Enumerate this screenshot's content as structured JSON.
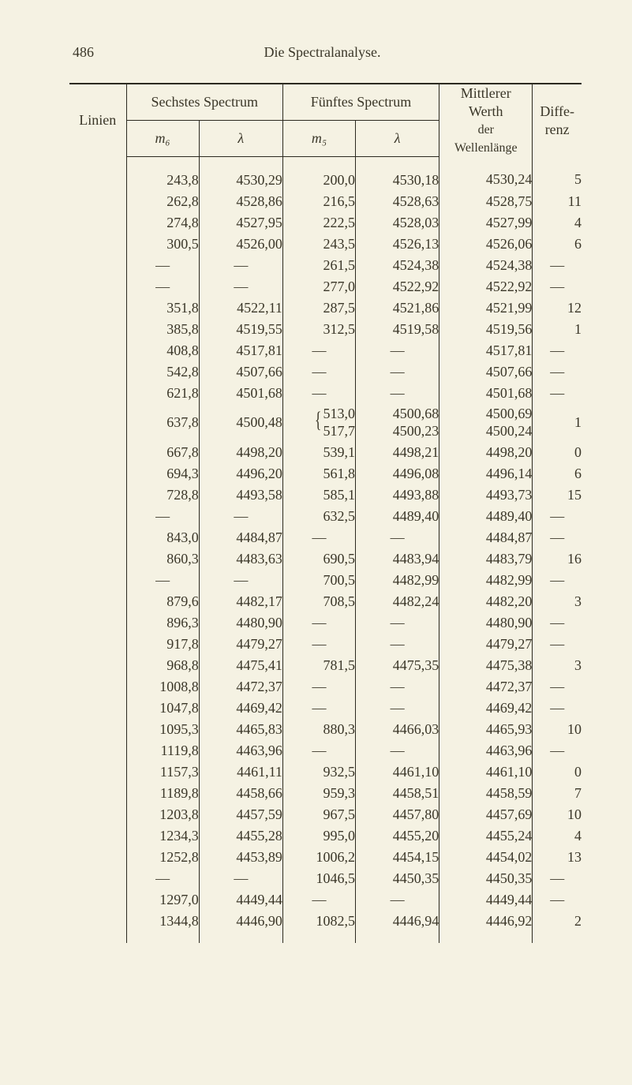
{
  "page_number": "486",
  "page_title": "Die Spectralanalyse.",
  "header": {
    "linien": "Linien",
    "sechstes": "Sechstes Spectrum",
    "fuenftes": "Fünftes Spectrum",
    "mittlerer_l1": "Mittlerer",
    "mittlerer_l2": "Werth",
    "mittlerer_l3": "der",
    "mittlerer_l4": "Wellenlänge",
    "diffe_l1": "Diffe-",
    "diffe_l2": "renz",
    "m6": "m₆",
    "l6": "λ",
    "m5": "m₅",
    "l5": "λ"
  },
  "dash": "—",
  "rows": [
    {
      "m6": "243,8",
      "l6": "4530,29",
      "m5": "200,0",
      "l5": "4530,18",
      "mw": "4530,24",
      "d": "5"
    },
    {
      "m6": "262,8",
      "l6": "4528,86",
      "m5": "216,5",
      "l5": "4528,63",
      "mw": "4528,75",
      "d": "11"
    },
    {
      "m6": "274,8",
      "l6": "4527,95",
      "m5": "222,5",
      "l5": "4528,03",
      "mw": "4527,99",
      "d": "4"
    },
    {
      "m6": "300,5",
      "l6": "4526,00",
      "m5": "243,5",
      "l5": "4526,13",
      "mw": "4526,06",
      "d": "6"
    },
    {
      "m6": "—",
      "l6": "—",
      "m5": "261,5",
      "l5": "4524,38",
      "mw": "4524,38",
      "d": "—"
    },
    {
      "m6": "—",
      "l6": "—",
      "m5": "277,0",
      "l5": "4522,92",
      "mw": "4522,92",
      "d": "—"
    },
    {
      "m6": "351,8",
      "l6": "4522,11",
      "m5": "287,5",
      "l5": "4521,86",
      "mw": "4521,99",
      "d": "12"
    },
    {
      "m6": "385,8",
      "l6": "4519,55",
      "m5": "312,5",
      "l5": "4519,58",
      "mw": "4519,56",
      "d": "1"
    },
    {
      "m6": "408,8",
      "l6": "4517,81",
      "m5": "—",
      "l5": "—",
      "mw": "4517,81",
      "d": "—"
    },
    {
      "m6": "542,8",
      "l6": "4507,66",
      "m5": "—",
      "l5": "—",
      "mw": "4507,66",
      "d": "—"
    },
    {
      "m6": "621,8",
      "l6": "4501,68",
      "m5": "—",
      "l5": "—",
      "mw": "4501,68",
      "d": "—"
    },
    {
      "m6": "637,8",
      "l6": "4500,48",
      "m5_a": "513,0",
      "m5_b": "517,7",
      "l5_a": "4500,68",
      "l5_b": "4500,23",
      "mw_a": "4500,69",
      "mw_b": "4500,24",
      "d": "1",
      "brace": true
    },
    {
      "m6": "667,8",
      "l6": "4498,20",
      "m5": "539,1",
      "l5": "4498,21",
      "mw": "4498,20",
      "d": "0"
    },
    {
      "m6": "694,3",
      "l6": "4496,20",
      "m5": "561,8",
      "l5": "4496,08",
      "mw": "4496,14",
      "d": "6"
    },
    {
      "m6": "728,8",
      "l6": "4493,58",
      "m5": "585,1",
      "l5": "4493,88",
      "mw": "4493,73",
      "d": "15"
    },
    {
      "m6": "—",
      "l6": "—",
      "m5": "632,5",
      "l5": "4489,40",
      "mw": "4489,40",
      "d": "—"
    },
    {
      "m6": "843,0",
      "l6": "4484,87",
      "m5": "—",
      "l5": "—",
      "mw": "4484,87",
      "d": "—"
    },
    {
      "m6": "860,3",
      "l6": "4483,63",
      "m5": "690,5",
      "l5": "4483,94",
      "mw": "4483,79",
      "d": "16"
    },
    {
      "m6": "—",
      "l6": "—",
      "m5": "700,5",
      "l5": "4482,99",
      "mw": "4482,99",
      "d": "—"
    },
    {
      "m6": "879,6",
      "l6": "4482,17",
      "m5": "708,5",
      "l5": "4482,24",
      "mw": "4482,20",
      "d": "3"
    },
    {
      "m6": "896,3",
      "l6": "4480,90",
      "m5": "—",
      "l5": "—",
      "mw": "4480,90",
      "d": "—"
    },
    {
      "m6": "917,8",
      "l6": "4479,27",
      "m5": "—",
      "l5": "—",
      "mw": "4479,27",
      "d": "—"
    },
    {
      "m6": "968,8",
      "l6": "4475,41",
      "m5": "781,5",
      "l5": "4475,35",
      "mw": "4475,38",
      "d": "3"
    },
    {
      "m6": "1008,8",
      "l6": "4472,37",
      "m5": "—",
      "l5": "—",
      "mw": "4472,37",
      "d": "—"
    },
    {
      "m6": "1047,8",
      "l6": "4469,42",
      "m5": "—",
      "l5": "—",
      "mw": "4469,42",
      "d": "—"
    },
    {
      "m6": "1095,3",
      "l6": "4465,83",
      "m5": "880,3",
      "l5": "4466,03",
      "mw": "4465,93",
      "d": "10"
    },
    {
      "m6": "1119,8",
      "l6": "4463,96",
      "m5": "—",
      "l5": "—",
      "mw": "4463,96",
      "d": "—"
    },
    {
      "m6": "1157,3",
      "l6": "4461,11",
      "m5": "932,5",
      "l5": "4461,10",
      "mw": "4461,10",
      "d": "0"
    },
    {
      "m6": "1189,8",
      "l6": "4458,66",
      "m5": "959,3",
      "l5": "4458,51",
      "mw": "4458,59",
      "d": "7"
    },
    {
      "m6": "1203,8",
      "l6": "4457,59",
      "m5": "967,5",
      "l5": "4457,80",
      "mw": "4457,69",
      "d": "10"
    },
    {
      "m6": "1234,3",
      "l6": "4455,28",
      "m5": "995,0",
      "l5": "4455,20",
      "mw": "4455,24",
      "d": "4"
    },
    {
      "m6": "1252,8",
      "l6": "4453,89",
      "m5": "1006,2",
      "l5": "4454,15",
      "mw": "4454,02",
      "d": "13"
    },
    {
      "m6": "—",
      "l6": "—",
      "m5": "1046,5",
      "l5": "4450,35",
      "mw": "4450,35",
      "d": "—"
    },
    {
      "m6": "1297,0",
      "l6": "4449,44",
      "m5": "—",
      "l5": "—",
      "mw": "4449,44",
      "d": "—"
    },
    {
      "m6": "1344,8",
      "l6": "4446,90",
      "m5": "1082,5",
      "l5": "4446,94",
      "mw": "4446,92",
      "d": "2"
    }
  ]
}
